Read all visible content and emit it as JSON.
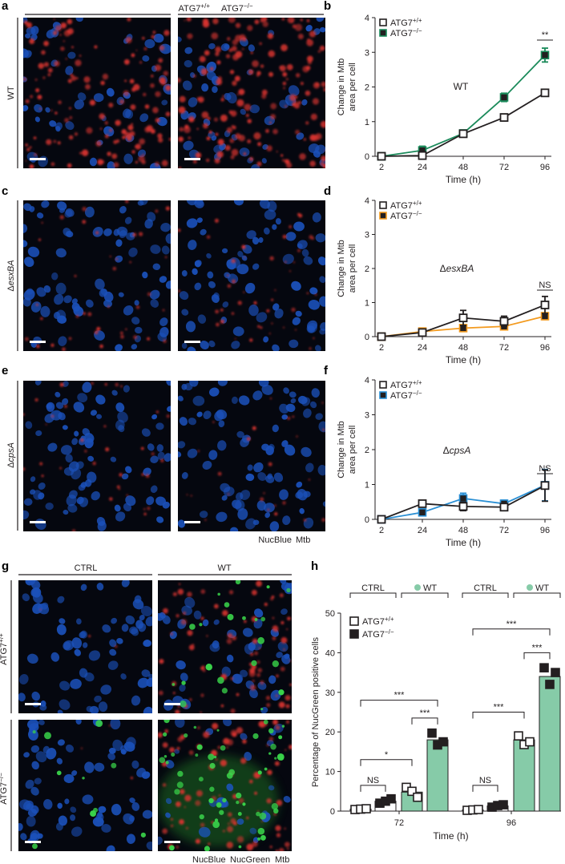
{
  "panels": {
    "a": "a",
    "b": "b",
    "c": "c",
    "d": "d",
    "e": "e",
    "f": "f",
    "g": "g",
    "h": "h"
  },
  "micro": {
    "col_header_left": "ATG7",
    "col_header_left_sup": "+/+",
    "col_header_right": "ATG7",
    "col_header_right_sup": "−/−",
    "row_wt": "WT",
    "row_esx_prefix": "Δ",
    "row_esx_italic": "esxBA",
    "row_cps_prefix": "Δ",
    "row_cps_italic": "cpsA",
    "stain_legend_ace": {
      "nucblue": "NucBlue",
      "mtb": "Mtb"
    },
    "stain_colors": {
      "nucblue": "#2b7bd6",
      "nucgreen": "#3aa845",
      "mtb": "#d42020"
    },
    "g_col_ctrl": "CTRL",
    "g_col_wt": "WT",
    "g_row_top": "ATG7",
    "g_row_top_sup": "+/+",
    "g_row_bottom": "ATG7",
    "g_row_bottom_sup": "−/−",
    "stain_legend_g": {
      "nucblue": "NucBlue",
      "nucgreen": "NucGreen",
      "mtb": "Mtb"
    }
  },
  "chart_data": [
    {
      "panel": "b",
      "type": "line",
      "x": [
        2,
        24,
        48,
        72,
        96
      ],
      "xlabel": "Time (h)",
      "ylabel_line1": "Change in Mtb",
      "ylabel_line2": "area per cell",
      "ylim": [
        0,
        4
      ],
      "yticks": [
        0,
        1,
        2,
        3,
        4
      ],
      "annotation": "WT",
      "annotation_italic": false,
      "significance": "**",
      "series": [
        {
          "name": "ATG7",
          "sup": "+/+",
          "values": [
            0,
            0.02,
            0.65,
            1.12,
            1.83
          ],
          "err": [
            0.02,
            0.05,
            0.04,
            0.05,
            0.06
          ],
          "color": "#231f20",
          "fill": "#ffffff"
        },
        {
          "name": "ATG7",
          "sup": "−/−",
          "values": [
            0,
            0.17,
            0.66,
            1.7,
            2.92
          ],
          "err": [
            0.03,
            0.12,
            0.05,
            0.12,
            0.2
          ],
          "color": "#1a8a5a",
          "fill": "#231f20"
        }
      ]
    },
    {
      "panel": "d",
      "type": "line",
      "x": [
        2,
        24,
        48,
        72,
        96
      ],
      "xlabel": "Time (h)",
      "ylabel_line1": "Change in Mtb",
      "ylabel_line2": "area per cell",
      "ylim": [
        0,
        4
      ],
      "yticks": [
        0,
        1,
        2,
        3,
        4
      ],
      "annotation_prefix": "Δ",
      "annotation": "esxBA",
      "annotation_italic": true,
      "significance": "NS",
      "series": [
        {
          "name": "ATG7",
          "sup": "+/+",
          "values": [
            0,
            0.12,
            0.55,
            0.45,
            0.93
          ],
          "err": [
            0.02,
            0.06,
            0.22,
            0.15,
            0.25
          ],
          "color": "#231f20",
          "fill": "#ffffff"
        },
        {
          "name": "ATG7",
          "sup": "−/−",
          "values": [
            0,
            0.15,
            0.25,
            0.3,
            0.6
          ],
          "err": [
            0.02,
            0.06,
            0.08,
            0.08,
            0.1
          ],
          "color": "#f39a1e",
          "fill": "#231f20"
        }
      ]
    },
    {
      "panel": "f",
      "type": "line",
      "x": [
        2,
        24,
        48,
        72,
        96
      ],
      "xlabel": "Time (h)",
      "ylabel_line1": "Change in Mtb",
      "ylabel_line2": "area per cell",
      "ylim": [
        0,
        4
      ],
      "yticks": [
        0,
        1,
        2,
        3,
        4
      ],
      "annotation_prefix": "Δ",
      "annotation": "cpsA",
      "annotation_italic": true,
      "significance": "NS",
      "series": [
        {
          "name": "ATG7",
          "sup": "+/+",
          "values": [
            0,
            0.45,
            0.37,
            0.35,
            0.97
          ],
          "err": [
            0.02,
            0.06,
            0.12,
            0.08,
            0.45
          ],
          "color": "#231f20",
          "fill": "#ffffff"
        },
        {
          "name": "ATG7",
          "sup": "−/−",
          "values": [
            0,
            0.2,
            0.6,
            0.45,
            0.98
          ],
          "err": [
            0.02,
            0.08,
            0.15,
            0.1,
            0.45
          ],
          "color": "#2a8fd4",
          "fill": "#231f20"
        }
      ]
    },
    {
      "panel": "h",
      "type": "bar",
      "ylabel": "Percentage of NucGreen positive cells",
      "xlabel": "Time (h)",
      "ylim": [
        0,
        50
      ],
      "yticks": [
        0,
        10,
        20,
        30,
        40,
        50
      ],
      "groups": [
        "72",
        "96"
      ],
      "top_labels": {
        "ctrl": "CTRL",
        "wt": "WT"
      },
      "legend": [
        {
          "name": "ATG7",
          "sup": "+/+",
          "style": "open"
        },
        {
          "name": "ATG7",
          "sup": "−/−",
          "style": "filled"
        }
      ],
      "bar_color_wt": "#86cba8",
      "bars": [
        {
          "group": "72",
          "condition": "CTRL",
          "genotype": "+/+",
          "mean": 0.5,
          "points": [
            0.4,
            0.5,
            0.6
          ]
        },
        {
          "group": "72",
          "condition": "CTRL",
          "genotype": "−/−",
          "mean": 2.5,
          "points": [
            2.0,
            2.5,
            3.1
          ]
        },
        {
          "group": "72",
          "condition": "WT",
          "genotype": "+/+",
          "mean": 4.8,
          "points": [
            6.0,
            5.0,
            3.5
          ]
        },
        {
          "group": "72",
          "condition": "WT",
          "genotype": "−/−",
          "mean": 18.0,
          "points": [
            19.7,
            16.7,
            17.5
          ]
        },
        {
          "group": "96",
          "condition": "CTRL",
          "genotype": "+/+",
          "mean": 0.3,
          "points": [
            0.2,
            0.3,
            0.4
          ]
        },
        {
          "group": "96",
          "condition": "CTRL",
          "genotype": "−/−",
          "mean": 1.3,
          "points": [
            1.0,
            1.4,
            1.6
          ]
        },
        {
          "group": "96",
          "condition": "WT",
          "genotype": "+/+",
          "mean": 18.0,
          "points": [
            19.0,
            16.8,
            17.5
          ]
        },
        {
          "group": "96",
          "condition": "WT",
          "genotype": "−/−",
          "mean": 34.0,
          "points": [
            36.2,
            32.0,
            35.0
          ]
        }
      ],
      "comparisons": [
        {
          "label": "NS"
        },
        {
          "label": "*"
        },
        {
          "label": "***"
        },
        {
          "label": "***"
        },
        {
          "label": "NS"
        },
        {
          "label": "***"
        },
        {
          "label": "***"
        },
        {
          "label": "***"
        }
      ]
    }
  ]
}
